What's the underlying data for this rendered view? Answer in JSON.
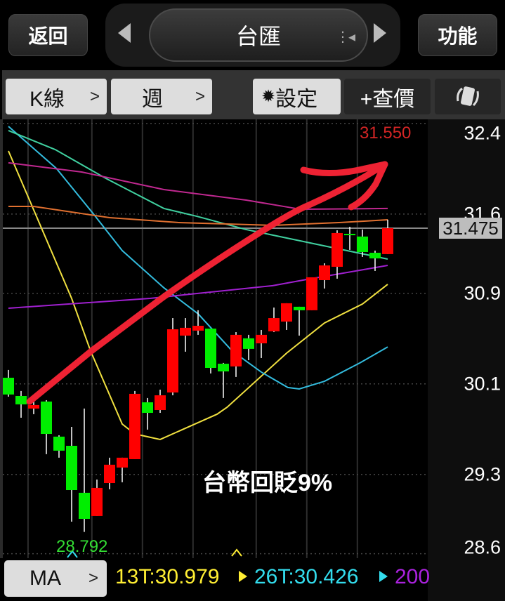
{
  "header": {
    "back_label": "返回",
    "title": "台匯",
    "function_label": "功能",
    "prev_icon": "triangle-left-icon",
    "next_icon": "triangle-right-icon",
    "list_icon": "list-toggle-icon"
  },
  "toolbar": {
    "chart_type_label": "K線",
    "period_label": "週",
    "settings_label": "設定",
    "settings_icon": "gear-icon",
    "quote_label": "+查價",
    "rotate_icon": "rotate-screen-icon"
  },
  "chart_data": {
    "type": "candlestick",
    "period": "週",
    "up_color": "#ff0000",
    "down_color": "#00ee00",
    "ylim": [
      28.573,
      32.405
    ],
    "y_ticks": [
      "32.4",
      "31.6",
      "30.9",
      "30.1",
      "29.3",
      "28.6"
    ],
    "grid": true,
    "last_price": "31.475",
    "high_label": "31.550",
    "low_label": "28.792",
    "candles": [
      {
        "o": 30.154,
        "h": 30.223,
        "l": 29.987,
        "c": 30.006
      },
      {
        "o": 29.993,
        "h": 30.037,
        "l": 29.801,
        "c": 29.919
      },
      {
        "o": 29.882,
        "h": 29.968,
        "l": 29.832,
        "c": 29.913
      },
      {
        "o": 29.944,
        "h": 29.956,
        "l": 29.479,
        "c": 29.658
      },
      {
        "o": 29.634,
        "h": 29.646,
        "l": 29.448,
        "c": 29.51
      },
      {
        "o": 29.553,
        "h": 29.72,
        "l": 28.883,
        "c": 29.162
      },
      {
        "o": 29.138,
        "h": 29.882,
        "l": 28.792,
        "c": 28.908
      },
      {
        "o": 28.933,
        "h": 29.255,
        "l": 28.933,
        "c": 29.181
      },
      {
        "o": 29.224,
        "h": 29.448,
        "l": 29.169,
        "c": 29.386
      },
      {
        "o": 29.361,
        "h": 29.448,
        "l": 29.231,
        "c": 29.448
      },
      {
        "o": 29.435,
        "h": 30.037,
        "l": 29.435,
        "c": 30.012
      },
      {
        "o": 29.937,
        "h": 29.975,
        "l": 29.696,
        "c": 29.844
      },
      {
        "o": 29.869,
        "h": 30.049,
        "l": 29.844,
        "c": 29.999
      },
      {
        "o": 30.024,
        "h": 30.681,
        "l": 29.999,
        "c": 30.582
      },
      {
        "o": 30.526,
        "h": 30.681,
        "l": 30.384,
        "c": 30.595
      },
      {
        "o": 30.57,
        "h": 30.75,
        "l": 30.533,
        "c": 30.613
      },
      {
        "o": 30.588,
        "h": 30.588,
        "l": 30.192,
        "c": 30.241
      },
      {
        "o": 30.278,
        "h": 30.285,
        "l": 29.975,
        "c": 30.21
      },
      {
        "o": 30.254,
        "h": 30.557,
        "l": 30.161,
        "c": 30.533
      },
      {
        "o": 30.502,
        "h": 30.533,
        "l": 30.309,
        "c": 30.409
      },
      {
        "o": 30.458,
        "h": 30.576,
        "l": 30.328,
        "c": 30.533
      },
      {
        "o": 30.564,
        "h": 30.774,
        "l": 30.557,
        "c": 30.681
      },
      {
        "o": 30.65,
        "h": 30.812,
        "l": 30.576,
        "c": 30.812
      },
      {
        "o": 30.781,
        "h": 30.781,
        "l": 30.526,
        "c": 30.75
      },
      {
        "o": 30.75,
        "h": 31.041,
        "l": 30.75,
        "c": 31.041
      },
      {
        "o": 31.016,
        "h": 31.165,
        "l": 30.942,
        "c": 31.146
      },
      {
        "o": 31.134,
        "h": 31.456,
        "l": 31.029,
        "c": 31.432
      },
      {
        "o": 31.425,
        "h": 31.487,
        "l": 31.283,
        "c": 31.413
      },
      {
        "o": 31.401,
        "h": 31.463,
        "l": 31.221,
        "c": 31.264
      },
      {
        "o": 31.258,
        "h": 31.277,
        "l": 31.097,
        "c": 31.208
      },
      {
        "o": 31.246,
        "h": 31.55,
        "l": 31.246,
        "c": 31.475
      }
    ],
    "moving_averages": [
      {
        "name": "13T",
        "color": "#f0e040",
        "points": [
          [
            0,
            32.157
          ],
          [
            5,
            30.855
          ],
          [
            6.5,
            30.39
          ],
          [
            9,
            29.745
          ],
          [
            10,
            29.658
          ],
          [
            12,
            29.609
          ],
          [
            16.5,
            29.832
          ],
          [
            17.3,
            29.894
          ],
          [
            22,
            30.371
          ],
          [
            25,
            30.638
          ],
          [
            28,
            30.805
          ],
          [
            30,
            30.979
          ]
        ]
      },
      {
        "name": "26T",
        "color": "#33bbdd",
        "points": [
          [
            0,
            32.374
          ],
          [
            3.8,
            32.002
          ],
          [
            6.6,
            31.618
          ],
          [
            9,
            31.277
          ],
          [
            12.3,
            30.948
          ],
          [
            15,
            30.719
          ],
          [
            17.7,
            30.39
          ],
          [
            20,
            30.204
          ],
          [
            22.1,
            30.068
          ],
          [
            23,
            30.055
          ],
          [
            25,
            30.123
          ],
          [
            27.8,
            30.285
          ],
          [
            30,
            30.426
          ]
        ]
      },
      {
        "name": "200",
        "color": "#a020d0",
        "points": [
          [
            0,
            30.768
          ],
          [
            11.2,
            30.855
          ],
          [
            20.9,
            30.967
          ],
          [
            23.6,
            31.022
          ],
          [
            30,
            31.146
          ]
        ]
      },
      {
        "color": "#40d0a0",
        "points": [
          [
            0,
            32.337
          ],
          [
            3.7,
            32.169
          ],
          [
            7.6,
            31.921
          ],
          [
            12.3,
            31.649
          ],
          [
            14.9,
            31.58
          ],
          [
            18.8,
            31.463
          ],
          [
            23.6,
            31.351
          ],
          [
            30,
            31.202
          ]
        ]
      },
      {
        "color": "#c02890",
        "points": [
          [
            0,
            32.052
          ],
          [
            5.8,
            31.971
          ],
          [
            12.3,
            31.816
          ],
          [
            18.8,
            31.723
          ],
          [
            23.1,
            31.642
          ],
          [
            30,
            31.649
          ]
        ]
      },
      {
        "color": "#e07030",
        "points": [
          [
            0,
            31.667
          ],
          [
            2,
            31.667
          ],
          [
            8,
            31.568
          ],
          [
            13.4,
            31.525
          ],
          [
            20.9,
            31.5
          ],
          [
            26.3,
            31.525
          ],
          [
            30,
            31.549
          ]
        ]
      }
    ],
    "annotation_text": "台幣回貶9%",
    "annotation_color": "#ee2233"
  },
  "bottom": {
    "indicator_label": "MA",
    "ma13_text": "13T:30.979",
    "ma13_color": "#ffee33",
    "ma26_text": "26T:30.426",
    "ma26_color": "#33ddee",
    "ma200_text": "200",
    "ma200_color": "#aa22dd"
  }
}
